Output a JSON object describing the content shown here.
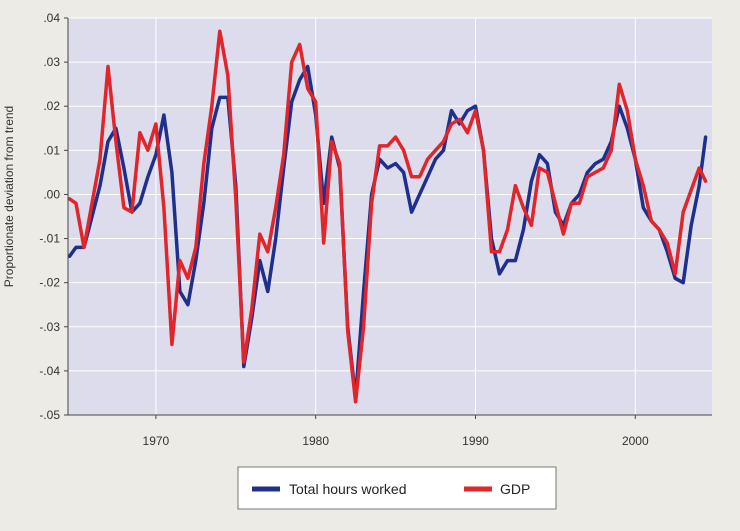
{
  "colors": {
    "plot_background": "#dcdcec",
    "hours": "#1f2f8c",
    "gdp": "#e0262a",
    "grid": "#ffffff"
  },
  "chart_data": {
    "type": "line",
    "title": "",
    "xlabel": "",
    "ylabel": "Proportionate deviation from trend",
    "xlim": [
      1964.5,
      2004.8
    ],
    "ylim": [
      -0.05,
      0.04
    ],
    "x_ticks": [
      1970,
      1980,
      1990,
      2000
    ],
    "x_tick_labels": [
      "1970",
      "1980",
      "1990",
      "2000"
    ],
    "y_ticks": [
      0.04,
      0.03,
      0.02,
      0.01,
      0.0,
      -0.01,
      -0.02,
      -0.03,
      -0.04,
      -0.05
    ],
    "y_tick_labels": [
      ".04",
      ".03",
      ".02",
      ".01",
      ".00",
      "-.01",
      "-.02",
      "-.03",
      "-.04",
      "-.05"
    ],
    "grid": true,
    "legend_position": "bottom",
    "series": [
      {
        "name": "Total hours worked",
        "color": "#1f2f8c",
        "x": [
          1964.6,
          1965.0,
          1965.5,
          1966.0,
          1966.5,
          1967.0,
          1967.5,
          1968.0,
          1968.5,
          1969.0,
          1969.5,
          1970.0,
          1970.5,
          1971.0,
          1971.5,
          1972.0,
          1972.5,
          1973.0,
          1973.5,
          1974.0,
          1974.5,
          1975.0,
          1975.5,
          1976.0,
          1976.5,
          1977.0,
          1977.5,
          1978.0,
          1978.5,
          1979.0,
          1979.5,
          1980.0,
          1980.5,
          1981.0,
          1981.5,
          1982.0,
          1982.5,
          1983.0,
          1983.5,
          1984.0,
          1984.5,
          1985.0,
          1985.5,
          1986.0,
          1986.5,
          1987.0,
          1987.5,
          1988.0,
          1988.5,
          1989.0,
          1989.5,
          1990.0,
          1990.5,
          1991.0,
          1991.5,
          1992.0,
          1992.5,
          1993.0,
          1993.5,
          1994.0,
          1994.5,
          1995.0,
          1995.5,
          1996.0,
          1996.5,
          1997.0,
          1997.5,
          1998.0,
          1998.5,
          1999.0,
          1999.5,
          2000.0,
          2000.5,
          2001.0,
          2001.5,
          2002.0,
          2002.5,
          2003.0,
          2003.5,
          2004.0,
          2004.4
        ],
        "y": [
          -0.014,
          -0.012,
          -0.012,
          -0.005,
          0.002,
          0.012,
          0.015,
          0.006,
          -0.004,
          -0.002,
          0.004,
          0.009,
          0.018,
          0.005,
          -0.022,
          -0.025,
          -0.015,
          -0.002,
          0.015,
          0.022,
          0.022,
          0.002,
          -0.039,
          -0.028,
          -0.015,
          -0.022,
          -0.01,
          0.006,
          0.021,
          0.026,
          0.029,
          0.018,
          -0.002,
          0.013,
          0.006,
          -0.03,
          -0.046,
          -0.022,
          0.0,
          0.008,
          0.006,
          0.007,
          0.005,
          -0.004,
          0.0,
          0.004,
          0.008,
          0.01,
          0.019,
          0.016,
          0.019,
          0.02,
          0.01,
          -0.01,
          -0.018,
          -0.015,
          -0.015,
          -0.008,
          0.003,
          0.009,
          0.007,
          -0.004,
          -0.007,
          -0.002,
          0.0,
          0.005,
          0.007,
          0.008,
          0.012,
          0.02,
          0.015,
          0.008,
          -0.003,
          -0.006,
          -0.008,
          -0.013,
          -0.019,
          -0.02,
          -0.007,
          0.002,
          0.013
        ]
      },
      {
        "name": "GDP",
        "color": "#e0262a",
        "x": [
          1964.6,
          1965.0,
          1965.5,
          1966.0,
          1966.5,
          1967.0,
          1967.5,
          1968.0,
          1968.5,
          1969.0,
          1969.5,
          1970.0,
          1970.5,
          1971.0,
          1971.5,
          1972.0,
          1972.5,
          1973.0,
          1973.5,
          1974.0,
          1974.5,
          1975.0,
          1975.5,
          1976.0,
          1976.5,
          1977.0,
          1977.5,
          1978.0,
          1978.5,
          1979.0,
          1979.5,
          1980.0,
          1980.5,
          1981.0,
          1981.5,
          1982.0,
          1982.5,
          1983.0,
          1983.5,
          1984.0,
          1984.5,
          1985.0,
          1985.5,
          1986.0,
          1986.5,
          1987.0,
          1987.5,
          1988.0,
          1988.5,
          1989.0,
          1989.5,
          1990.0,
          1990.5,
          1991.0,
          1991.5,
          1992.0,
          1992.5,
          1993.0,
          1993.5,
          1994.0,
          1994.5,
          1995.0,
          1995.5,
          1996.0,
          1996.5,
          1997.0,
          1997.5,
          1998.0,
          1998.5,
          1999.0,
          1999.5,
          2000.0,
          2000.5,
          2001.0,
          2001.5,
          2002.0,
          2002.5,
          2003.0,
          2003.5,
          2004.0,
          2004.4
        ],
        "y": [
          -0.001,
          -0.002,
          -0.012,
          -0.002,
          0.008,
          0.029,
          0.012,
          -0.003,
          -0.004,
          0.014,
          0.01,
          0.016,
          -0.003,
          -0.034,
          -0.015,
          -0.019,
          -0.012,
          0.007,
          0.02,
          0.037,
          0.027,
          -0.001,
          -0.038,
          -0.026,
          -0.009,
          -0.013,
          -0.003,
          0.009,
          0.03,
          0.034,
          0.024,
          0.021,
          -0.011,
          0.012,
          0.007,
          -0.031,
          -0.047,
          -0.03,
          -0.002,
          0.011,
          0.011,
          0.013,
          0.01,
          0.004,
          0.004,
          0.008,
          0.01,
          0.012,
          0.016,
          0.017,
          0.014,
          0.019,
          0.01,
          -0.013,
          -0.013,
          -0.008,
          0.002,
          -0.003,
          -0.007,
          0.006,
          0.005,
          -0.002,
          -0.009,
          -0.002,
          -0.002,
          0.004,
          0.005,
          0.006,
          0.01,
          0.025,
          0.019,
          0.008,
          0.002,
          -0.006,
          -0.008,
          -0.011,
          -0.018,
          -0.004,
          0.001,
          0.006,
          0.003
        ]
      }
    ]
  }
}
